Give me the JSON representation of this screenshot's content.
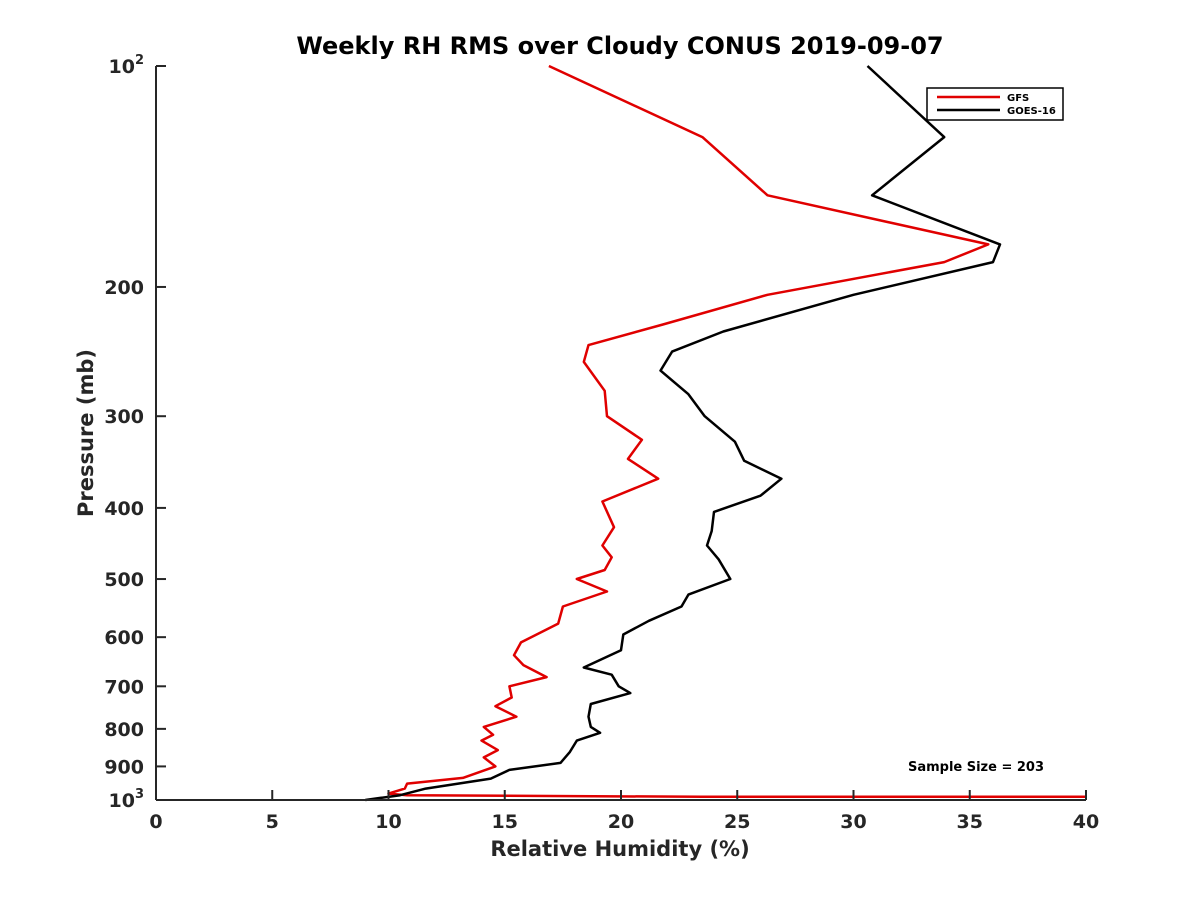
{
  "chart_data": {
    "type": "line",
    "title": "Weekly RH RMS over Cloudy CONUS 2019-09-07",
    "xlabel": "Relative Humidity (%)",
    "ylabel": "Pressure (mb)",
    "xlim": [
      0,
      40
    ],
    "ylim": [
      100,
      1000
    ],
    "y_scale": "log",
    "y_reversed": true,
    "grid": false,
    "legend_position": "top-right",
    "x_ticks": [
      "0",
      "5",
      "10",
      "15",
      "20",
      "25",
      "30",
      "35",
      "40"
    ],
    "y_ticks": [
      {
        "value": 100,
        "label": "10",
        "exp": "2"
      },
      {
        "value": 200,
        "label": "200"
      },
      {
        "value": 300,
        "label": "300"
      },
      {
        "value": 400,
        "label": "400"
      },
      {
        "value": 500,
        "label": "500"
      },
      {
        "value": 600,
        "label": "600"
      },
      {
        "value": 700,
        "label": "700"
      },
      {
        "value": 800,
        "label": "800"
      },
      {
        "value": 900,
        "label": "900"
      },
      {
        "value": 1000,
        "label": "10",
        "exp": "3"
      }
    ],
    "annotation": "Sample Size = 203",
    "series": [
      {
        "name": "GFS",
        "color": "#e00000",
        "points": [
          [
            16.9,
            100
          ],
          [
            23.5,
            125
          ],
          [
            26.3,
            150
          ],
          [
            35.8,
            175
          ],
          [
            33.9,
            185
          ],
          [
            26.3,
            205
          ],
          [
            21.8,
            225
          ],
          [
            18.6,
            240
          ],
          [
            18.4,
            253
          ],
          [
            19.3,
            277
          ],
          [
            19.4,
            300
          ],
          [
            20.9,
            323
          ],
          [
            20.3,
            343
          ],
          [
            21.6,
            365
          ],
          [
            19.2,
            392
          ],
          [
            19.7,
            425
          ],
          [
            19.2,
            450
          ],
          [
            19.6,
            467
          ],
          [
            19.3,
            486
          ],
          [
            18.1,
            500
          ],
          [
            19.4,
            520
          ],
          [
            17.5,
            545
          ],
          [
            17.3,
            575
          ],
          [
            15.7,
            610
          ],
          [
            15.4,
            635
          ],
          [
            15.8,
            655
          ],
          [
            16.8,
            680
          ],
          [
            15.2,
            700
          ],
          [
            15.3,
            725
          ],
          [
            14.6,
            745
          ],
          [
            15.5,
            770
          ],
          [
            14.1,
            795
          ],
          [
            14.5,
            815
          ],
          [
            14.0,
            830
          ],
          [
            14.7,
            855
          ],
          [
            14.1,
            875
          ],
          [
            14.6,
            900
          ],
          [
            13.2,
            933
          ],
          [
            10.8,
            950
          ],
          [
            10.7,
            965
          ],
          [
            10.0,
            980
          ],
          [
            10.8,
            985
          ],
          [
            23.5,
            990
          ],
          [
            40.0,
            990
          ]
        ]
      },
      {
        "name": "GOES-16",
        "color": "#000000",
        "points": [
          [
            30.6,
            100
          ],
          [
            33.9,
            125
          ],
          [
            30.8,
            150
          ],
          [
            36.3,
            175
          ],
          [
            36.0,
            185
          ],
          [
            30.0,
            205
          ],
          [
            24.4,
            230
          ],
          [
            22.2,
            245
          ],
          [
            21.7,
            260
          ],
          [
            22.9,
            280
          ],
          [
            23.6,
            300
          ],
          [
            24.9,
            325
          ],
          [
            25.3,
            345
          ],
          [
            26.9,
            365
          ],
          [
            26.0,
            385
          ],
          [
            24.0,
            405
          ],
          [
            23.9,
            430
          ],
          [
            23.7,
            450
          ],
          [
            24.2,
            470
          ],
          [
            24.7,
            500
          ],
          [
            22.9,
            525
          ],
          [
            22.6,
            545
          ],
          [
            21.2,
            570
          ],
          [
            20.1,
            595
          ],
          [
            20.0,
            625
          ],
          [
            18.4,
            660
          ],
          [
            19.6,
            675
          ],
          [
            19.9,
            700
          ],
          [
            20.4,
            715
          ],
          [
            18.7,
            740
          ],
          [
            18.6,
            770
          ],
          [
            18.7,
            795
          ],
          [
            19.1,
            810
          ],
          [
            18.1,
            830
          ],
          [
            17.8,
            860
          ],
          [
            17.4,
            890
          ],
          [
            15.2,
            910
          ],
          [
            14.4,
            935
          ],
          [
            11.6,
            965
          ],
          [
            10.5,
            985
          ],
          [
            9.0,
            1000
          ]
        ]
      }
    ]
  }
}
